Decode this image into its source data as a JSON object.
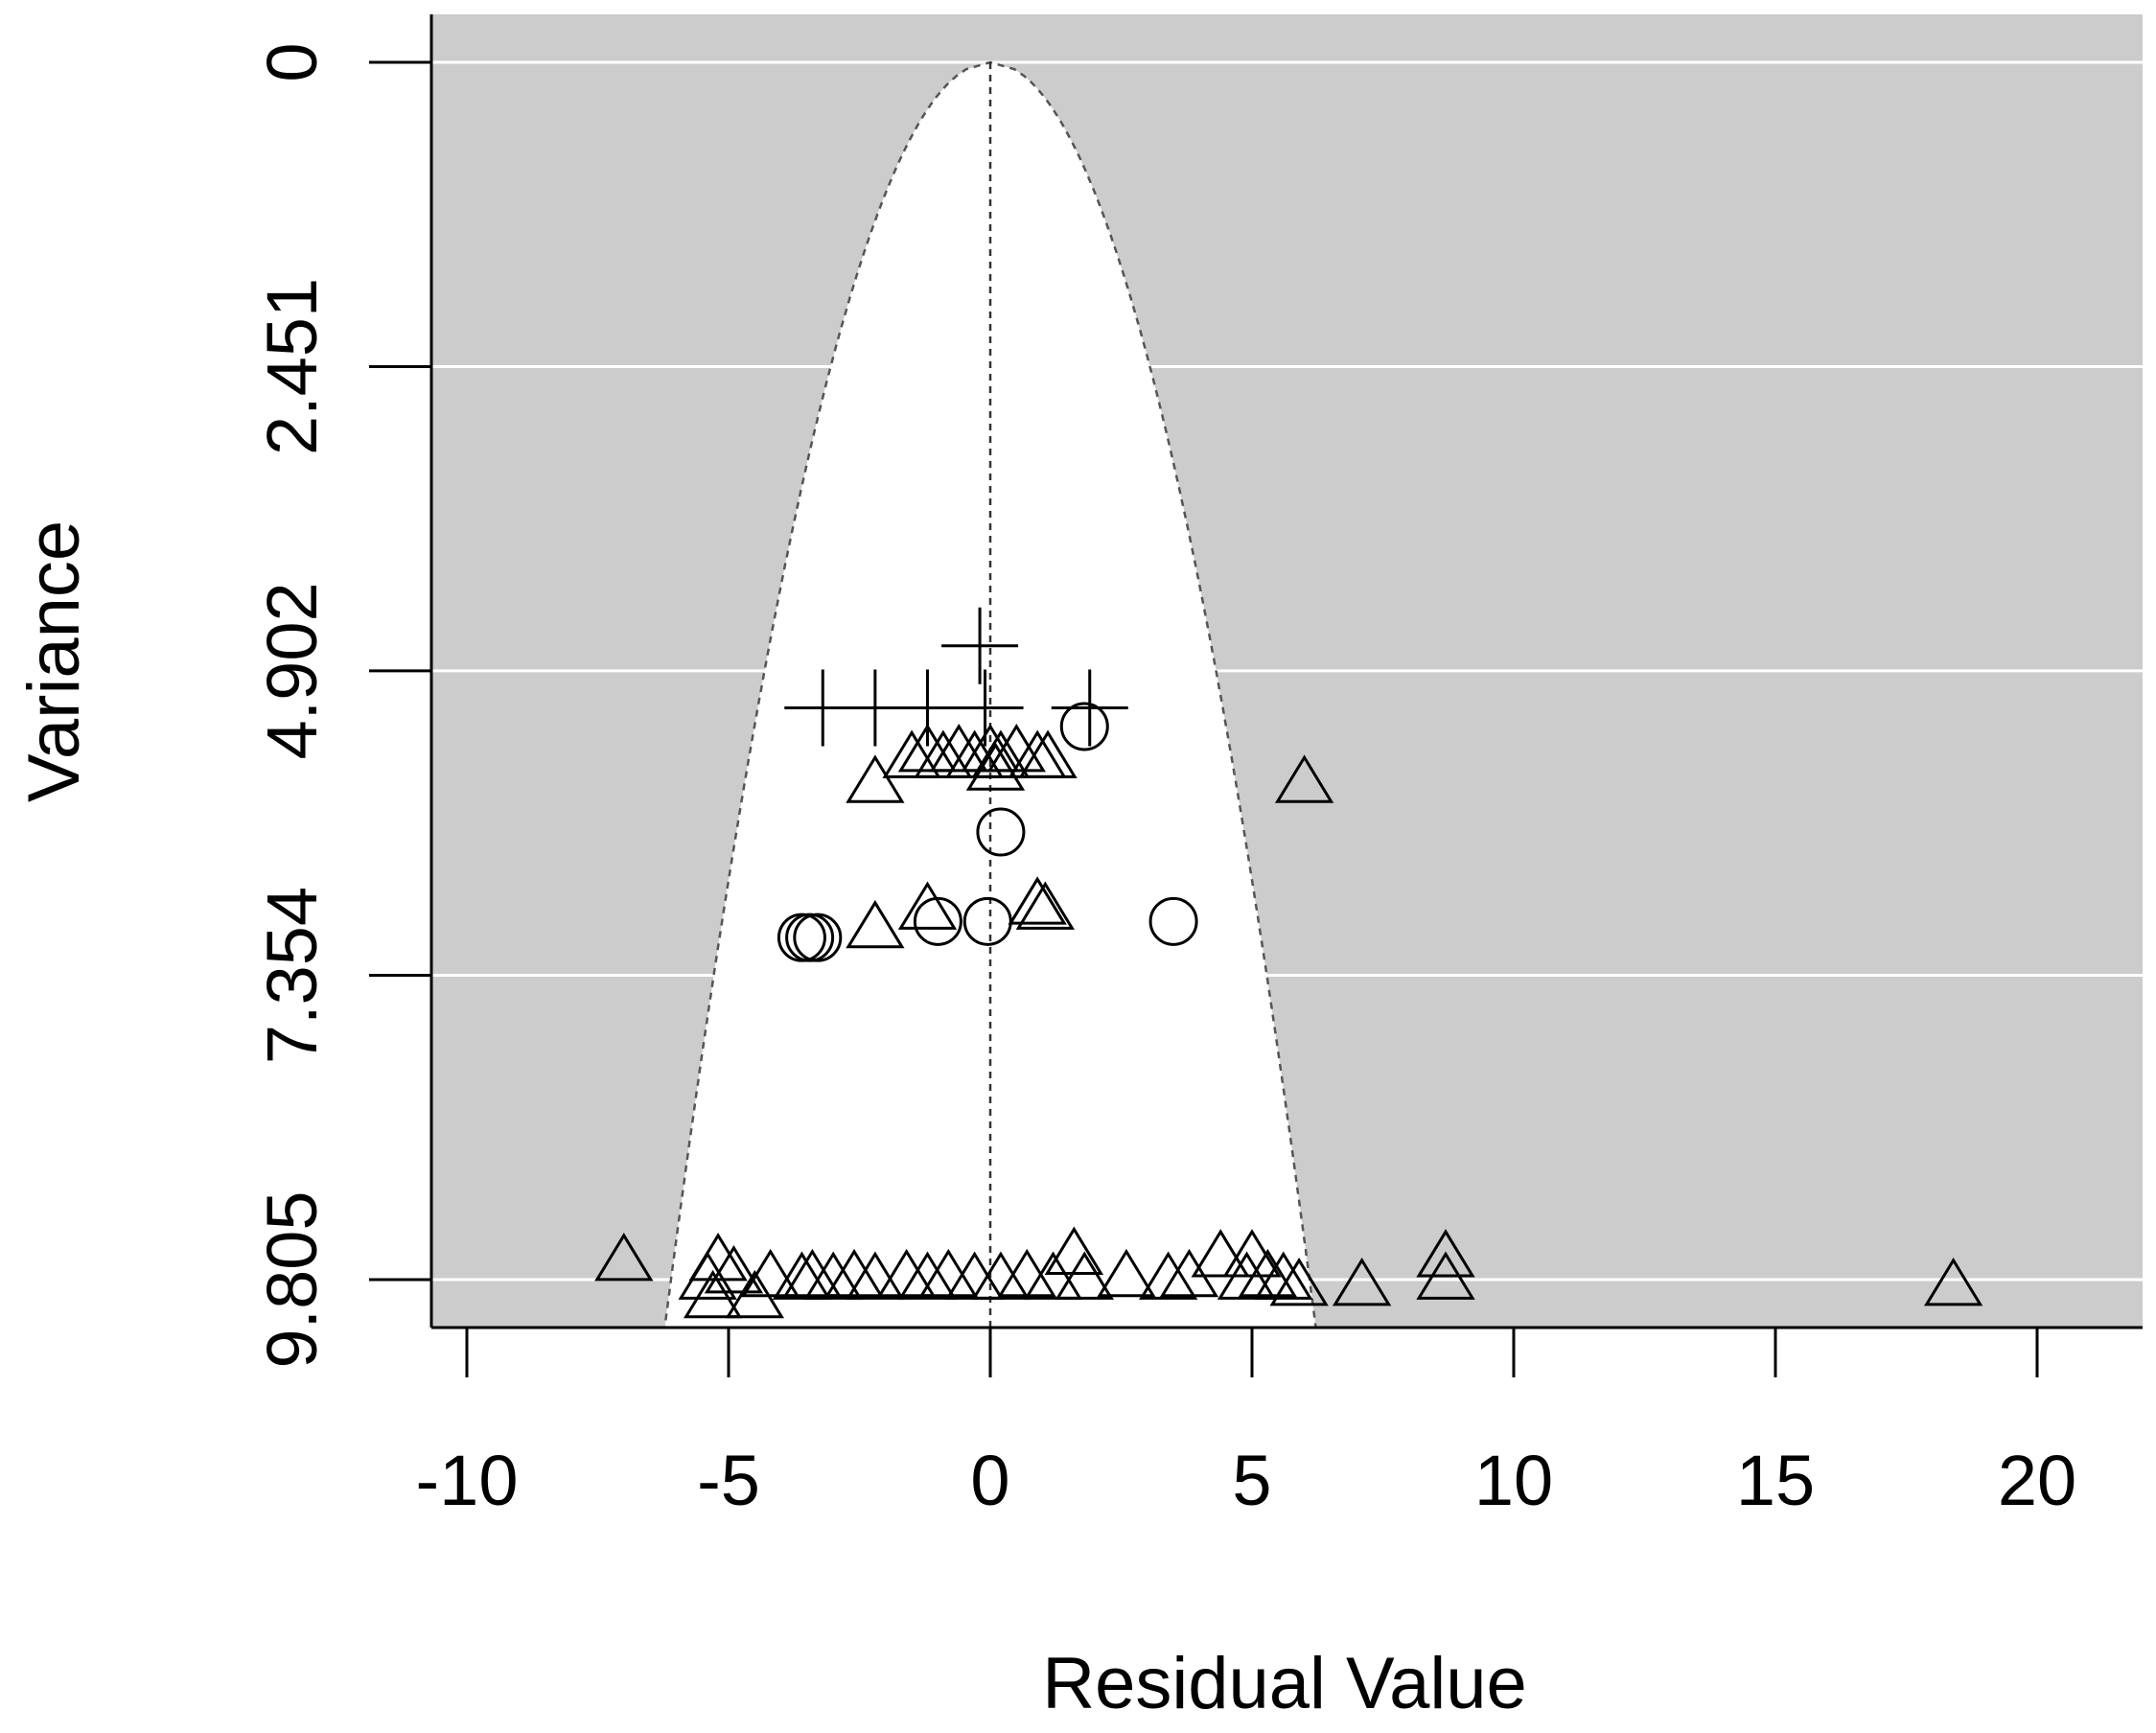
{
  "chart_data": {
    "type": "scatter",
    "title": "",
    "xlabel": "Residual Value",
    "ylabel": "Variance",
    "xlim": [
      -10.9,
      22
    ],
    "ylim": [
      9.805,
      0
    ],
    "y_reversed": true,
    "x_ticks": [
      "-10",
      "-5",
      "0",
      "5",
      "10",
      "15",
      "20"
    ],
    "y_ticks": [
      "0",
      "2.451",
      "4.902",
      "7.354",
      "9.805"
    ],
    "grid": true,
    "panel_background": "#cccccc",
    "grid_color": "#ffffff",
    "funnel": {
      "center": 0,
      "half_width_at_max_variance": 6.1,
      "style": "dashed",
      "color": "#555555"
    },
    "series": [
      {
        "marker": "plus",
        "points": [
          [
            -0.2,
            4.7
          ],
          [
            -3.2,
            5.2
          ],
          [
            -2.2,
            5.2
          ],
          [
            -1.2,
            5.2
          ],
          [
            -0.1,
            5.2
          ],
          [
            1.9,
            5.2
          ]
        ]
      },
      {
        "marker": "circle",
        "points": [
          [
            1.8,
            5.35
          ],
          [
            0.2,
            6.2
          ],
          [
            -1.0,
            6.92
          ],
          [
            -0.05,
            6.92
          ],
          [
            3.5,
            6.92
          ],
          [
            -3.6,
            7.05
          ],
          [
            -3.45,
            7.05
          ],
          [
            -3.3,
            7.05
          ]
        ]
      },
      {
        "marker": "triangle",
        "points": [
          [
            -2.2,
            5.8
          ],
          [
            6.0,
            5.8
          ],
          [
            -1.5,
            5.6
          ],
          [
            -1.2,
            5.55
          ],
          [
            -0.9,
            5.6
          ],
          [
            -0.6,
            5.55
          ],
          [
            -0.3,
            5.6
          ],
          [
            0.0,
            5.55
          ],
          [
            0.2,
            5.6
          ],
          [
            0.5,
            5.55
          ],
          [
            0.9,
            5.6
          ],
          [
            1.1,
            5.6
          ],
          [
            0.1,
            5.7
          ],
          [
            -2.2,
            6.97
          ],
          [
            -1.2,
            6.82
          ],
          [
            0.9,
            6.78
          ],
          [
            1.05,
            6.82
          ],
          [
            -7.0,
            9.65
          ],
          [
            -5.2,
            9.65
          ],
          [
            -5.4,
            9.8
          ],
          [
            -5.3,
            9.95
          ],
          [
            -4.9,
            9.75
          ],
          [
            -4.5,
            9.95
          ],
          [
            -4.2,
            9.78
          ],
          [
            -3.6,
            9.8
          ],
          [
            -3.4,
            9.78
          ],
          [
            -3.0,
            9.8
          ],
          [
            -2.6,
            9.78
          ],
          [
            -2.2,
            9.8
          ],
          [
            -1.6,
            9.78
          ],
          [
            -1.2,
            9.8
          ],
          [
            -0.8,
            9.78
          ],
          [
            -0.3,
            9.8
          ],
          [
            0.2,
            9.8
          ],
          [
            0.7,
            9.78
          ],
          [
            1.2,
            9.8
          ],
          [
            1.6,
            9.6
          ],
          [
            1.8,
            9.8
          ],
          [
            2.6,
            9.78
          ],
          [
            3.4,
            9.8
          ],
          [
            3.8,
            9.78
          ],
          [
            4.4,
            9.62
          ],
          [
            4.9,
            9.8
          ],
          [
            5.0,
            9.62
          ],
          [
            5.3,
            9.78
          ],
          [
            5.6,
            9.8
          ],
          [
            5.9,
            9.85
          ],
          [
            7.1,
            9.85
          ],
          [
            8.7,
            9.62
          ],
          [
            8.7,
            9.8
          ],
          [
            18.4,
            9.85
          ]
        ]
      }
    ]
  }
}
